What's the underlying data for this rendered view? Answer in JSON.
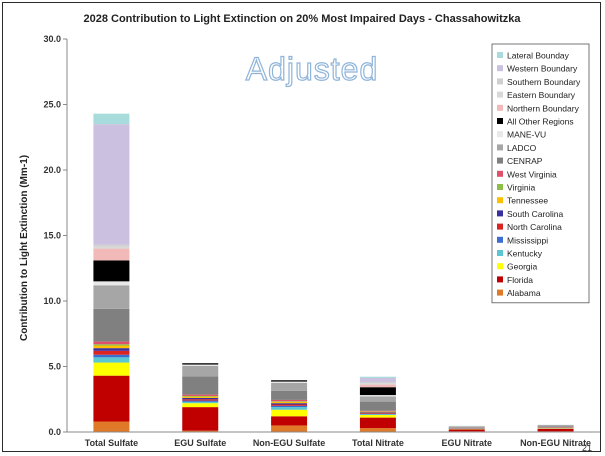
{
  "chart_data": {
    "type": "bar",
    "stacked": true,
    "title": "2028 Contribution to Light Extinction on 20% Most Impaired Days - Chassahowitzka",
    "ylabel": "Contribution to Light Extinction (Mm-1)",
    "xlabel": "",
    "ylim": [
      0,
      30
    ],
    "yticks": [
      "0.0",
      "5.0",
      "10.0",
      "15.0",
      "20.0",
      "25.0",
      "30.0"
    ],
    "grid": false,
    "legend_position": "right",
    "annotation": "Adjusted",
    "categories": [
      "Total Sulfate",
      "EGU Sulfate",
      "Non-EGU Sulfate",
      "Total Nitrate",
      "EGU Nitrate",
      "Non-EGU Nitrate"
    ],
    "series": [
      {
        "name": "Alabama",
        "color": "#e07a28",
        "values": [
          0.8,
          0.1,
          0.5,
          0.3,
          0.05,
          0.05
        ]
      },
      {
        "name": "Florida",
        "color": "#c00000",
        "values": [
          3.5,
          1.8,
          0.7,
          0.8,
          0.15,
          0.2
        ]
      },
      {
        "name": "Georgia",
        "color": "#ffff00",
        "values": [
          1.0,
          0.3,
          0.5,
          0.2,
          0.02,
          0.03
        ]
      },
      {
        "name": "Kentucky",
        "color": "#5bc7d2",
        "values": [
          0.4,
          0.1,
          0.2,
          0.05,
          0.02,
          0.02
        ]
      },
      {
        "name": "Mississippi",
        "color": "#3a6fd0",
        "values": [
          0.2,
          0.1,
          0.1,
          0.05,
          0.02,
          0.02
        ]
      },
      {
        "name": "North Carolina",
        "color": "#dd2222",
        "values": [
          0.3,
          0.1,
          0.1,
          0.05,
          0.02,
          0.02
        ]
      },
      {
        "name": "South Carolina",
        "color": "#3a2fa0",
        "values": [
          0.2,
          0.1,
          0.1,
          0.05,
          0.01,
          0.01
        ]
      },
      {
        "name": "Tennessee",
        "color": "#ffc000",
        "values": [
          0.2,
          0.1,
          0.1,
          0.05,
          0.01,
          0.01
        ]
      },
      {
        "name": "Virginia",
        "color": "#8cbf4a",
        "values": [
          0.1,
          0.05,
          0.05,
          0.02,
          0.01,
          0.01
        ]
      },
      {
        "name": "West Virginia",
        "color": "#e0506a",
        "values": [
          0.2,
          0.1,
          0.1,
          0.05,
          0.01,
          0.01
        ]
      },
      {
        "name": "CENRAP",
        "color": "#808080",
        "values": [
          2.5,
          1.4,
          0.7,
          0.7,
          0.05,
          0.05
        ]
      },
      {
        "name": "LADCO",
        "color": "#a6a6a6",
        "values": [
          1.8,
          0.8,
          0.6,
          0.4,
          0.03,
          0.04
        ]
      },
      {
        "name": "MANE-VU",
        "color": "#e8e8e8",
        "values": [
          0.3,
          0.1,
          0.1,
          0.1,
          0.01,
          0.01
        ]
      },
      {
        "name": "All Other Regions",
        "color": "#000000",
        "values": [
          1.6,
          0.1,
          0.1,
          0.6,
          0.01,
          0.02
        ]
      },
      {
        "name": "Northern Boundary",
        "color": "#f2b9b9",
        "values": [
          0.9,
          0.0,
          0.0,
          0.2,
          0.01,
          0.01
        ]
      },
      {
        "name": "Eastern Boundary",
        "color": "#d8d8d8",
        "values": [
          0.2,
          0.0,
          0.0,
          0.1,
          0.01,
          0.01
        ]
      },
      {
        "name": "Southern Boundary",
        "color": "#cfcfcf",
        "values": [
          0.1,
          0.0,
          0.0,
          0.1,
          0.01,
          0.01
        ]
      },
      {
        "name": "Western Boundary",
        "color": "#ccc0e0",
        "values": [
          9.2,
          0.0,
          0.0,
          0.3,
          0.01,
          0.01
        ]
      },
      {
        "name": "Lateral Bounday",
        "color": "#a8dcdc",
        "values": [
          0.8,
          0.0,
          0.0,
          0.1,
          0.01,
          0.01
        ]
      }
    ]
  },
  "page_number": "21"
}
